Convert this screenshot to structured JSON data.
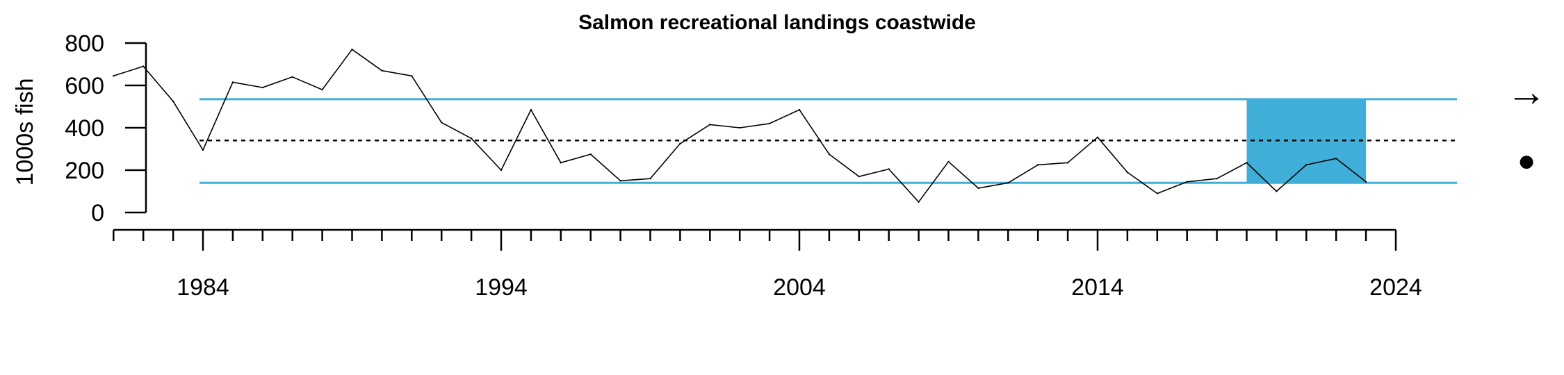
{
  "chart_data": {
    "type": "line",
    "title": "Salmon recreational landings coastwide",
    "ylabel": "1000s fish",
    "xlabel": "",
    "xlim": [
      1981,
      2024
    ],
    "ylim": [
      0,
      800
    ],
    "y_ticks": [
      0,
      200,
      400,
      600,
      800
    ],
    "x_tick_labels": [
      1984,
      1994,
      2004,
      2014,
      2024
    ],
    "x_minor_ticks": [
      1981,
      1982,
      1983,
      1984,
      1985,
      1986,
      1987,
      1988,
      1989,
      1990,
      1991,
      1992,
      1993,
      1994,
      1995,
      1996,
      1997,
      1998,
      1999,
      2000,
      2001,
      2002,
      2003,
      2004,
      2005,
      2006,
      2007,
      2008,
      2009,
      2010,
      2011,
      2012,
      2013,
      2014,
      2015,
      2016,
      2017,
      2018,
      2019,
      2020,
      2021,
      2022,
      2023,
      2024
    ],
    "x": [
      1981,
      1982,
      1983,
      1984,
      1985,
      1986,
      1987,
      1988,
      1989,
      1990,
      1991,
      1992,
      1993,
      1994,
      1995,
      1996,
      1997,
      1998,
      1999,
      2000,
      2001,
      2002,
      2003,
      2004,
      2005,
      2006,
      2007,
      2008,
      2009,
      2010,
      2011,
      2012,
      2013,
      2014,
      2015,
      2016,
      2017,
      2018,
      2019,
      2020,
      2021,
      2022,
      2023
    ],
    "series": [
      {
        "values": [
          645,
          690,
          525,
          295,
          615,
          590,
          640,
          580,
          770,
          670,
          645,
          425,
          350,
          200,
          485,
          235,
          275,
          150,
          160,
          325,
          415,
          400,
          420,
          485,
          275,
          170,
          205,
          50,
          240,
          115,
          140,
          225,
          235,
          355,
          190,
          90,
          145,
          160,
          235,
          100,
          225,
          255,
          145
        ],
        "color": "#000000"
      }
    ],
    "mean": 340,
    "upper_sd": 535,
    "lower_sd": 140,
    "recent_start": 2019,
    "recent_end": 2023,
    "band_color": "#3FAED8",
    "line_color": "#3FAED8",
    "trend_symbol": "→",
    "mean_status_symbol": "●"
  }
}
